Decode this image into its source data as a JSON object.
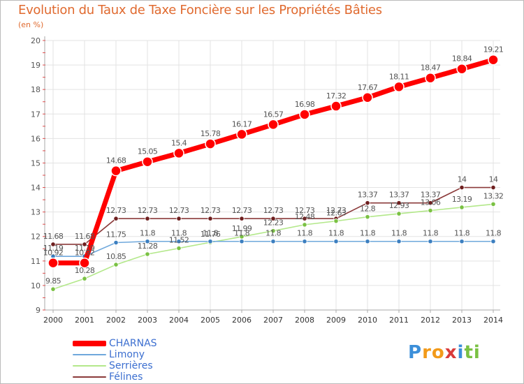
{
  "title": "Evolution du Taux de Taxe Foncière sur les Propriétés Bâties",
  "unit_label": "(en %)",
  "logo": {
    "text": "Proxiti",
    "letters": [
      "P",
      "r",
      "o",
      "x",
      "i",
      "t",
      "i"
    ],
    "colors": [
      "#3c8fd9",
      "#f29a1a",
      "#f29a1a",
      "#d93b3b",
      "#3c8fd9",
      "#7ac143",
      "#7ac143"
    ]
  },
  "chart_data": {
    "type": "line",
    "title": "Evolution du Taux de Taxe Foncière sur les Propriétés Bâties",
    "ylabel": "(en %)",
    "xlabel": "",
    "ylim": [
      9,
      20
    ],
    "yticks": [
      "9",
      "10",
      "11",
      "12",
      "13",
      "14",
      "15",
      "16",
      "17",
      "18",
      "19",
      "20"
    ],
    "categories": [
      "2000",
      "2001",
      "2002",
      "2003",
      "2004",
      "2005",
      "2006",
      "2007",
      "2008",
      "2009",
      "2010",
      "2011",
      "2012",
      "2013",
      "2014"
    ],
    "grid": true,
    "series": [
      {
        "name": "CHARNAS",
        "color": "#ff0000",
        "marker": "#ff0000",
        "thick": true,
        "values": [
          10.92,
          10.92,
          14.68,
          15.05,
          15.4,
          15.78,
          16.17,
          16.57,
          16.98,
          17.32,
          17.67,
          18.11,
          18.47,
          18.84,
          19.21
        ],
        "labels": [
          "10.92",
          "10.92",
          "14.68",
          "15.05",
          "15.4",
          "15.78",
          "16.17",
          "16.57",
          "16.98",
          "17.32",
          "17.67",
          "18.11",
          "18.47",
          "18.84",
          "19.21"
        ]
      },
      {
        "name": "Limony",
        "color": "#6fa8dc",
        "marker": "#3c7fc0",
        "thick": false,
        "values": [
          11.19,
          11.19,
          11.75,
          11.8,
          11.8,
          11.8,
          11.8,
          11.8,
          11.8,
          11.8,
          11.8,
          11.8,
          11.8,
          11.8,
          11.8
        ],
        "labels": [
          "11.19",
          "11.19",
          "11.75",
          "11.8",
          "11.8",
          "11.8",
          "11.8",
          "11.8",
          "11.8",
          "11.8",
          "11.8",
          "11.8",
          "11.8",
          "11.8",
          "11.8"
        ]
      },
      {
        "name": "Serrières",
        "color": "#b3e88a",
        "marker": "#7ac143",
        "thick": false,
        "values": [
          9.85,
          10.28,
          10.85,
          11.28,
          11.52,
          11.76,
          11.99,
          12.23,
          12.48,
          12.63,
          12.8,
          12.93,
          13.06,
          13.19,
          13.32
        ],
        "labels": [
          "9.85",
          "10.28",
          "10.85",
          "11.28",
          "11.52",
          "11.76",
          "11.99",
          "12.23",
          "12.48",
          "12.63",
          "12.8",
          "12.93",
          "13.06",
          "13.19",
          "13.32"
        ]
      },
      {
        "name": "Félines",
        "color": "#8b3a3a",
        "marker": "#6e1f1f",
        "thick": false,
        "values": [
          11.68,
          11.68,
          12.73,
          12.73,
          12.73,
          12.73,
          12.73,
          12.73,
          12.73,
          12.73,
          13.37,
          13.37,
          13.37,
          14,
          14
        ],
        "labels": [
          "11.68",
          "11.68",
          "12.73",
          "12.73",
          "12.73",
          "12.73",
          "12.73",
          "12.73",
          "12.73",
          "12.73",
          "13.37",
          "13.37",
          "13.37",
          "14",
          "14"
        ]
      }
    ]
  },
  "legend": [
    {
      "name": "CHARNAS",
      "color": "#ff0000",
      "text_color": "#3c6fd0"
    },
    {
      "name": "Limony",
      "color": "#6fa8dc",
      "text_color": "#3c6fd0"
    },
    {
      "name": "Serrières",
      "color": "#b3e88a",
      "text_color": "#3c6fd0"
    },
    {
      "name": "Félines",
      "color": "#8b3a3a",
      "text_color": "#3c6fd0"
    }
  ]
}
